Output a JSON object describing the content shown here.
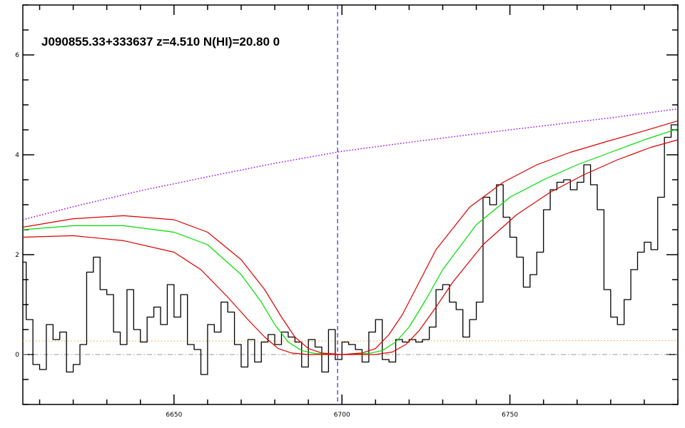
{
  "chart_data": {
    "type": "line",
    "title": "J090855.33+333637 z=4.510 N(HI)=20.80 0",
    "xlabel": "",
    "ylabel": "",
    "xlim": [
      6605,
      6800
    ],
    "ylim": [
      -1.0,
      7.0
    ],
    "x_ticks": [
      6650,
      6700,
      6750
    ],
    "y_ticks": [
      0,
      2,
      4,
      6
    ],
    "x_tick_labels": [
      "6650",
      "6700",
      "6750"
    ],
    "y_tick_labels": [
      "0",
      "2",
      "4",
      "6"
    ],
    "x_minor_step": 10,
    "y_minor_step": 0.5,
    "grid": false,
    "vline": {
      "x": 6698.7,
      "color": "#0000cc",
      "style": "dashed"
    },
    "zero_line": {
      "y": 0,
      "color": "#999999",
      "style": "dashdot"
    },
    "error_line": {
      "color": "#ff9933",
      "style": "dotted",
      "x": [
        6605,
        6700,
        6800
      ],
      "y": [
        0.27,
        0.27,
        0.28
      ]
    },
    "continuum": {
      "color": "#9900ff",
      "style": "dotted",
      "x": [
        6605,
        6620,
        6640,
        6660,
        6680,
        6700,
        6720,
        6740,
        6760,
        6780,
        6800
      ],
      "y": [
        2.7,
        2.96,
        3.28,
        3.56,
        3.83,
        4.07,
        4.25,
        4.42,
        4.58,
        4.74,
        4.92
      ]
    },
    "series": [
      {
        "role": "flux",
        "color": "#000000",
        "step": true,
        "x": [
          6605,
          6607,
          6609,
          6611,
          6613,
          6615,
          6617,
          6619,
          6621,
          6623,
          6625,
          6627,
          6629,
          6631,
          6633,
          6635,
          6637,
          6639,
          6641,
          6643,
          6645,
          6647,
          6649,
          6651,
          6653,
          6655,
          6657,
          6659,
          6661,
          6663,
          6665,
          6667,
          6669,
          6671,
          6673,
          6675,
          6677,
          6679,
          6681,
          6683,
          6685,
          6687,
          6689,
          6691,
          6693,
          6695,
          6697,
          6699,
          6701,
          6703,
          6705,
          6707,
          6709,
          6711,
          6713,
          6715,
          6717,
          6719,
          6721,
          6723,
          6725,
          6727,
          6729,
          6731,
          6733,
          6735,
          6737,
          6739,
          6741,
          6743,
          6745,
          6747,
          6749,
          6751,
          6753,
          6755,
          6757,
          6759,
          6761,
          6763,
          6765,
          6767,
          6769,
          6771,
          6773,
          6775,
          6777,
          6779,
          6781,
          6783,
          6785,
          6787,
          6789,
          6791,
          6793,
          6795,
          6797,
          6799
        ],
        "y": [
          1.85,
          0.7,
          -0.2,
          -0.3,
          0.6,
          0.3,
          0.45,
          -0.35,
          -0.2,
          0.2,
          1.65,
          1.95,
          1.3,
          1.2,
          0.45,
          0.2,
          1.3,
          0.5,
          0.25,
          0.75,
          0.95,
          0.6,
          1.4,
          0.75,
          1.2,
          0.2,
          0.1,
          -0.4,
          0.6,
          0.45,
          1.05,
          0.85,
          0.2,
          -0.25,
          0.3,
          -0.15,
          0.25,
          0.4,
          0.2,
          0.45,
          0.35,
          0.25,
          -0.25,
          0.3,
          0.15,
          -0.35,
          0.5,
          -0.1,
          0.25,
          0.2,
          0.1,
          -0.15,
          0.45,
          0.7,
          -0.1,
          -0.15,
          0.3,
          0.25,
          0.3,
          0.25,
          0.3,
          0.55,
          1.3,
          1.4,
          1.05,
          0.9,
          0.35,
          0.7,
          1.05,
          3.15,
          3.0,
          3.4,
          2.75,
          2.35,
          1.95,
          1.35,
          1.6,
          2.05,
          2.9,
          3.3,
          3.45,
          3.5,
          3.3,
          3.45,
          3.8,
          3.4,
          2.9,
          1.3,
          0.75,
          0.6,
          1.1,
          1.7,
          2.05,
          2.25,
          2.1,
          3.15,
          4.35,
          4.6
        ],
        "name": ""
      },
      {
        "role": "fit",
        "color": "#00dd00",
        "x": [
          6605,
          6620,
          6635,
          6650,
          6660,
          6670,
          6676,
          6680,
          6684,
          6688,
          6692,
          6700,
          6708,
          6712,
          6716,
          6720,
          6725,
          6730,
          6740,
          6750,
          6760,
          6770,
          6780,
          6790,
          6800
        ],
        "y": [
          2.5,
          2.58,
          2.58,
          2.45,
          2.2,
          1.6,
          1.05,
          0.6,
          0.25,
          0.08,
          0.02,
          0.0,
          0.02,
          0.08,
          0.25,
          0.55,
          1.1,
          1.7,
          2.6,
          3.15,
          3.5,
          3.8,
          4.05,
          4.3,
          4.52
        ],
        "name": ""
      },
      {
        "role": "fit-upper",
        "color": "#dd0000",
        "x": [
          6605,
          6620,
          6635,
          6650,
          6660,
          6670,
          6677,
          6682,
          6686,
          6690,
          6694,
          6700,
          6706,
          6710,
          6714,
          6718,
          6723,
          6728,
          6738,
          6748,
          6758,
          6768,
          6778,
          6790,
          6800
        ],
        "y": [
          2.55,
          2.72,
          2.78,
          2.7,
          2.45,
          1.9,
          1.3,
          0.75,
          0.35,
          0.12,
          0.03,
          0.0,
          0.03,
          0.12,
          0.4,
          0.8,
          1.45,
          2.1,
          2.95,
          3.45,
          3.8,
          4.05,
          4.25,
          4.48,
          4.68
        ],
        "name": ""
      },
      {
        "role": "fit-lower",
        "color": "#dd0000",
        "x": [
          6605,
          6620,
          6635,
          6650,
          6658,
          6666,
          6672,
          6677,
          6681,
          6685,
          6690,
          6700,
          6710,
          6715,
          6719,
          6723,
          6728,
          6733,
          6742,
          6752,
          6762,
          6772,
          6782,
          6792,
          6800
        ],
        "y": [
          2.35,
          2.38,
          2.28,
          2.05,
          1.7,
          1.15,
          0.7,
          0.35,
          0.12,
          0.03,
          0.0,
          0.0,
          0.0,
          0.05,
          0.2,
          0.48,
          0.95,
          1.45,
          2.2,
          2.8,
          3.25,
          3.6,
          3.9,
          4.15,
          4.3
        ],
        "name": ""
      }
    ]
  }
}
